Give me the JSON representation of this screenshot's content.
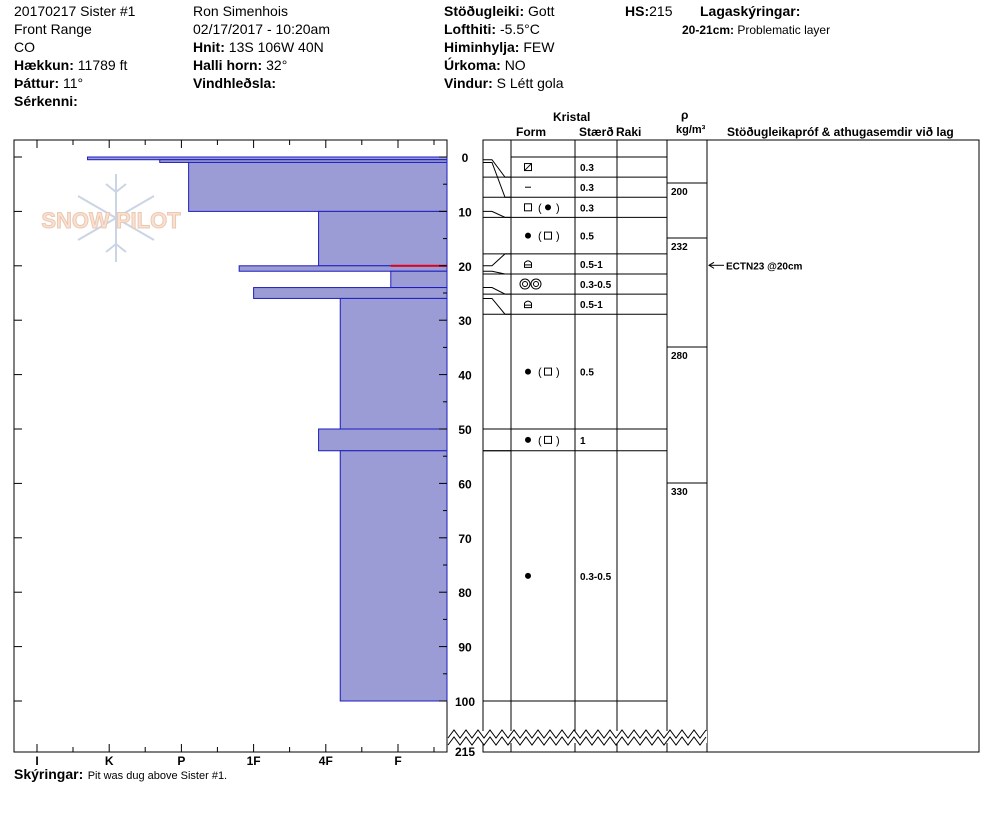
{
  "header": {
    "pit_name": "20170217 Sister #1",
    "range": "Front Range",
    "state": "CO",
    "elevation_label": "Hækkun:",
    "elevation": "11789 ft",
    "aspect_label": "Þáttur:",
    "aspect": "11°",
    "features_label": "Sérkenni:",
    "observer": "Ron Simenhois",
    "datetime": "02/17/2017 - 10:20am",
    "coords_label": "Hnit:",
    "coords": "13S 106W 40N",
    "slope_label": "Halli horn:",
    "slope": "32°",
    "windload_label": "Vindhleðsla:",
    "stability_label": "Stöðugleiki:",
    "stability": "Gott",
    "airtemp_label": "Lofthiti:",
    "airtemp": "-5.5°C",
    "sky_label": "Himinhylja:",
    "sky": "FEW",
    "precip_label": "Úrkoma:",
    "precip": "NO",
    "wind_label": "Vindur:",
    "wind": "S Létt gola",
    "hs_label": "HS:",
    "hs": "215",
    "legend_title": "Lagaskýringar:",
    "legend_layer": "20-21cm:",
    "legend_text": "Problematic layer"
  },
  "footer": {
    "notes_label": "Skýringar:",
    "notes": "Pit was dug above Sister #1."
  },
  "watermark": "SNOW PILOT",
  "columns": {
    "crystal": "Kristal",
    "form": "Form",
    "size": "Stærð",
    "moisture": "Raki",
    "rho": "ρ",
    "density_unit": "kg/m³",
    "tests": "Stöðugleikapróf & athugasemdir við lag"
  },
  "chart_data": {
    "type": "bar",
    "orientation": "horizontal",
    "ylabel": "",
    "xlabel": "",
    "y_ticks": [
      0,
      10,
      20,
      30,
      40,
      50,
      60,
      70,
      80,
      90,
      100
    ],
    "y_break_label": "215",
    "ylim": [
      0,
      110
    ],
    "hardness_categories": [
      "I",
      "K",
      "P",
      "1F",
      "4F",
      "F"
    ],
    "colors": {
      "layer_fill": "#9b9bd6",
      "layer_stroke": "#1d1dbd",
      "problem_line": "#e0001b"
    },
    "hardness_layers": [
      {
        "top": 0,
        "bottom": 0.5,
        "hardness": 0.7
      },
      {
        "top": 0.5,
        "bottom": 1,
        "hardness": 1.7
      },
      {
        "top": 1,
        "bottom": 10,
        "hardness": 2.1
      },
      {
        "top": 10,
        "bottom": 20,
        "hardness": 3.9
      },
      {
        "top": 20,
        "bottom": 21,
        "hardness": 2.8
      },
      {
        "top": 21,
        "bottom": 24,
        "hardness": 4.9
      },
      {
        "top": 24,
        "bottom": 26,
        "hardness": 3.0
      },
      {
        "top": 26,
        "bottom": 50,
        "hardness": 4.2
      },
      {
        "top": 50,
        "bottom": 54,
        "hardness": 3.9
      },
      {
        "top": 54,
        "bottom": 100,
        "hardness": 4.2
      }
    ],
    "problem_layer": {
      "top": 20,
      "bottom": 21
    },
    "crystal_rows": [
      {
        "top": 0,
        "bottom": 3.7,
        "form": "rect-slash",
        "size": "0.3",
        "hs_top": 0,
        "hs_bottom": 0.5
      },
      {
        "top": 3.7,
        "bottom": 7.4,
        "form": "dash",
        "size": "0.3",
        "hs_top": 0.5,
        "hs_bottom": 1
      },
      {
        "top": 7.4,
        "bottom": 11.1,
        "form": "square-dot",
        "size": "0.3",
        "hs_top": 1,
        "hs_bottom": 10
      },
      {
        "top": 11.1,
        "bottom": 17.8,
        "form": "dot-square",
        "size": "0.5",
        "hs_top": 10,
        "hs_bottom": 20
      },
      {
        "top": 17.8,
        "bottom": 21.5,
        "form": "cup",
        "size": "0.5-1",
        "hs_top": 20,
        "hs_bottom": 21
      },
      {
        "top": 21.5,
        "bottom": 25.2,
        "form": "double-circle",
        "size": "0.3-0.5",
        "hs_top": 21,
        "hs_bottom": 24
      },
      {
        "top": 25.2,
        "bottom": 28.9,
        "form": "cup",
        "size": "0.5-1",
        "hs_top": 24,
        "hs_bottom": 26
      },
      {
        "top": 28.9,
        "bottom": 50,
        "form": "dot-square",
        "size": "0.5",
        "hs_top": 26,
        "hs_bottom": 50
      },
      {
        "top": 50,
        "bottom": 54,
        "form": "dot-square",
        "size": "1",
        "hs_top": 50,
        "hs_bottom": 54
      },
      {
        "top": 54,
        "bottom": 100,
        "form": "dot",
        "size": "0.3-0.5",
        "hs_top": 54,
        "hs_bottom": 100
      }
    ],
    "density": [
      {
        "depth": 5,
        "value": "200"
      },
      {
        "depth": 15,
        "value": "232"
      },
      {
        "depth": 35,
        "value": "280"
      },
      {
        "depth": 60,
        "value": "330"
      }
    ],
    "tests": [
      {
        "depth": 20,
        "label": "ECTN23 @20cm"
      }
    ]
  }
}
